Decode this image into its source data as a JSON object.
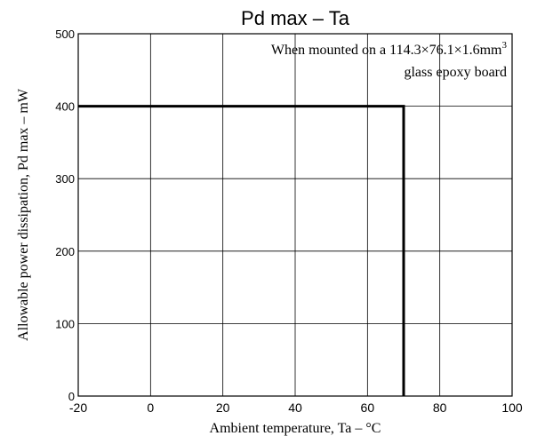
{
  "chart_data": {
    "type": "line",
    "title": "Pd max – Ta",
    "xlabel": "Ambient temperature, Ta – °C",
    "ylabel": "Allowable power dissipation, Pd max – mW",
    "xlim": [
      -20,
      100
    ],
    "ylim": [
      0,
      500
    ],
    "xticks": [
      -20,
      0,
      20,
      40,
      60,
      80,
      100
    ],
    "yticks": [
      0,
      100,
      200,
      300,
      400,
      500
    ],
    "grid": true,
    "annotation": {
      "line1": "When mounted on a 114.3×76.1×1.6mm",
      "line1_sup": "3",
      "line2": "glass epoxy board"
    },
    "series": [
      {
        "x": [
          -20,
          70,
          70
        ],
        "y": [
          400,
          400,
          0
        ]
      }
    ]
  }
}
